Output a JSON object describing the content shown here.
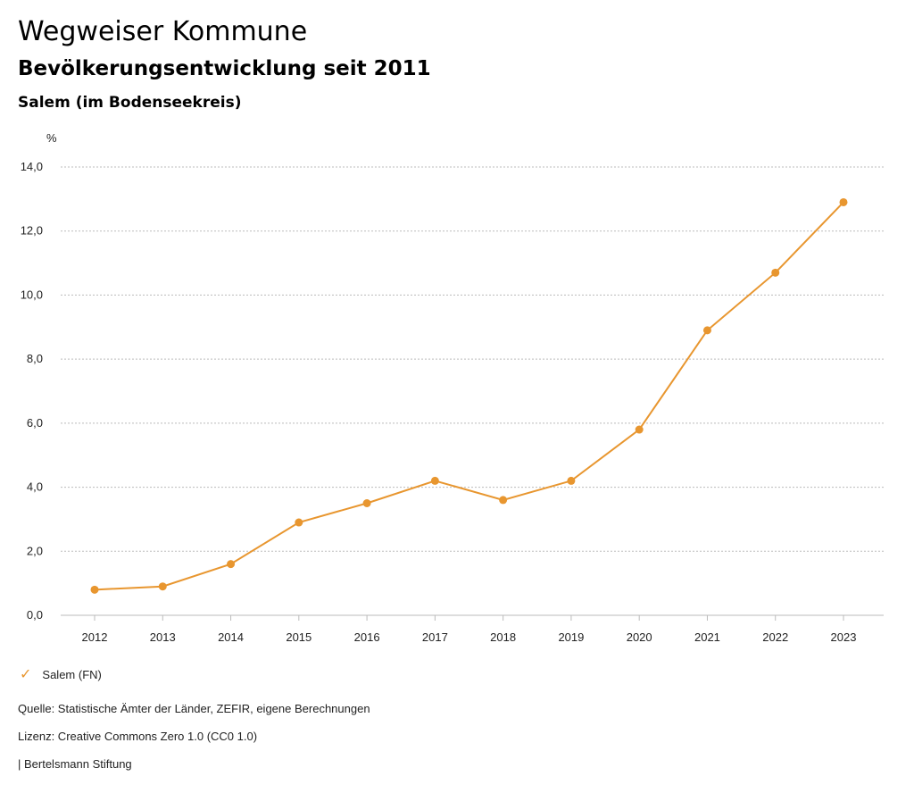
{
  "header": {
    "title": "Wegweiser Kommune",
    "subtitle": "Bevölkerungsentwicklung seit 2011",
    "region": "Salem (im Bodenseekreis)"
  },
  "chart_data": {
    "type": "line",
    "y_unit_label": "%",
    "categories": [
      "2012",
      "2013",
      "2014",
      "2015",
      "2016",
      "2017",
      "2018",
      "2019",
      "2020",
      "2021",
      "2022",
      "2023"
    ],
    "series": [
      {
        "name": "Salem (FN)",
        "color": "#e8962f",
        "values": [
          0.8,
          0.9,
          1.6,
          2.9,
          3.5,
          4.2,
          3.6,
          4.2,
          5.8,
          8.9,
          10.7,
          12.9
        ]
      }
    ],
    "ylim": [
      0,
      14
    ],
    "yticks": [
      "0,0",
      "2,0",
      "4,0",
      "6,0",
      "8,0",
      "10,0",
      "12,0",
      "14,0"
    ],
    "ytick_values": [
      0,
      2,
      4,
      6,
      8,
      10,
      12,
      14
    ],
    "grid": true,
    "legend_position": "bottom-left"
  },
  "legend": {
    "label": "Salem (FN)",
    "icon": "check-icon"
  },
  "footer": {
    "source": "Quelle: Statistische Ämter der Länder, ZEFIR, eigene Berechnungen",
    "license": "Lizenz: Creative Commons Zero 1.0 (CC0 1.0)",
    "publisher": "| Bertelsmann Stiftung"
  }
}
